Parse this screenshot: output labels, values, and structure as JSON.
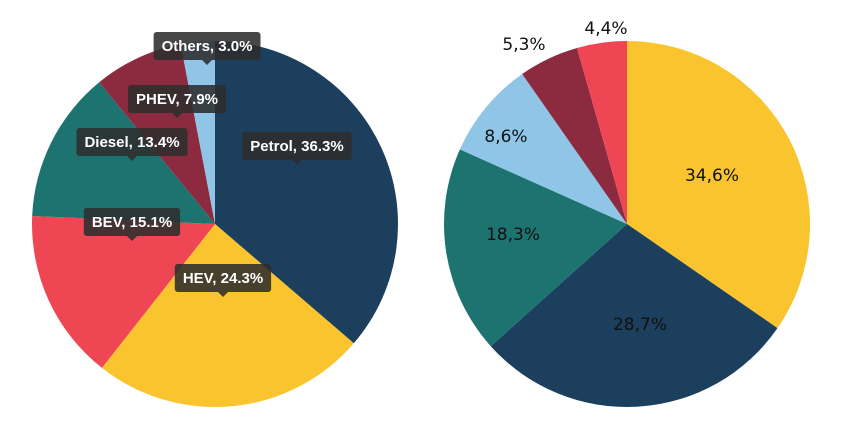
{
  "chart_data": [
    {
      "type": "pie",
      "slices": [
        {
          "label": "Petrol",
          "value": 36.3,
          "display": "Petrol, 36.3%",
          "color": "#1b3f5c"
        },
        {
          "label": "HEV",
          "value": 24.3,
          "display": "HEV, 24.3%",
          "color": "#f9c42d"
        },
        {
          "label": "BEV",
          "value": 15.1,
          "display": "BEV, 15.1%",
          "color": "#ee4652"
        },
        {
          "label": "Diesel",
          "value": 13.4,
          "display": "Diesel, 13.4%",
          "color": "#1c7370"
        },
        {
          "label": "PHEV",
          "value": 7.9,
          "display": "PHEV, 7.9%",
          "color": "#8c2a40"
        },
        {
          "label": "Others",
          "value": 3.0,
          "display": "Others, 3.0%",
          "color": "#8fc6e8"
        }
      ]
    },
    {
      "type": "pie",
      "slices": [
        {
          "value": 34.6,
          "display": "34,6%",
          "color": "#f9c42d"
        },
        {
          "value": 28.7,
          "display": "28,7%",
          "color": "#1b3f5c"
        },
        {
          "value": 18.3,
          "display": "18,3%",
          "color": "#1c7370"
        },
        {
          "value": 8.6,
          "display": "8,6%",
          "color": "#8fc6e8"
        },
        {
          "value": 5.3,
          "display": "5,3%",
          "color": "#8c2a40"
        },
        {
          "value": 4.4,
          "display": "4,4%",
          "color": "#ee4652"
        }
      ]
    }
  ]
}
